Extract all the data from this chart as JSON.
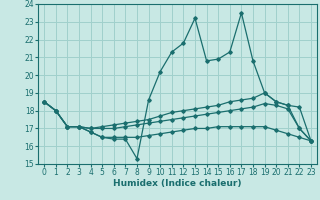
{
  "title": "",
  "xlabel": "Humidex (Indice chaleur)",
  "ylabel": "",
  "xlim": [
    -0.5,
    23.5
  ],
  "ylim": [
    15,
    24
  ],
  "yticks": [
    15,
    16,
    17,
    18,
    19,
    20,
    21,
    22,
    23,
    24
  ],
  "xticks": [
    0,
    1,
    2,
    3,
    4,
    5,
    6,
    7,
    8,
    9,
    10,
    11,
    12,
    13,
    14,
    15,
    16,
    17,
    18,
    19,
    20,
    21,
    22,
    23
  ],
  "bg_color": "#c8e8e4",
  "grid_color": "#a0d0cc",
  "line_color": "#1a6e6e",
  "lines": [
    {
      "x": [
        0,
        1,
        2,
        3,
        4,
        5,
        6,
        7,
        8,
        9,
        10,
        11,
        12,
        13,
        14,
        15,
        16,
        17,
        18,
        19,
        20,
        21,
        22,
        23
      ],
      "y": [
        18.5,
        18.0,
        17.1,
        17.1,
        16.8,
        16.5,
        16.4,
        16.4,
        15.3,
        18.6,
        20.2,
        21.3,
        21.8,
        23.2,
        20.8,
        20.9,
        21.3,
        23.5,
        20.8,
        19.0,
        18.5,
        18.3,
        17.0,
        16.3
      ]
    },
    {
      "x": [
        0,
        1,
        2,
        3,
        4,
        5,
        6,
        7,
        8,
        9,
        10,
        11,
        12,
        13,
        14,
        15,
        16,
        17,
        18,
        19,
        20,
        21,
        22,
        23
      ],
      "y": [
        18.5,
        18.0,
        17.1,
        17.1,
        17.0,
        17.1,
        17.2,
        17.3,
        17.4,
        17.5,
        17.7,
        17.9,
        18.0,
        18.1,
        18.2,
        18.3,
        18.5,
        18.6,
        18.7,
        19.0,
        18.5,
        18.3,
        18.2,
        16.3
      ]
    },
    {
      "x": [
        0,
        1,
        2,
        3,
        4,
        5,
        6,
        7,
        8,
        9,
        10,
        11,
        12,
        13,
        14,
        15,
        16,
        17,
        18,
        19,
        20,
        21,
        22,
        23
      ],
      "y": [
        18.5,
        18.0,
        17.1,
        17.1,
        17.0,
        17.0,
        17.0,
        17.1,
        17.2,
        17.3,
        17.4,
        17.5,
        17.6,
        17.7,
        17.8,
        17.9,
        18.0,
        18.1,
        18.2,
        18.4,
        18.3,
        18.1,
        17.0,
        16.3
      ]
    },
    {
      "x": [
        0,
        1,
        2,
        3,
        4,
        5,
        6,
        7,
        8,
        9,
        10,
        11,
        12,
        13,
        14,
        15,
        16,
        17,
        18,
        19,
        20,
        21,
        22,
        23
      ],
      "y": [
        18.5,
        18.0,
        17.1,
        17.1,
        16.8,
        16.5,
        16.5,
        16.5,
        16.5,
        16.6,
        16.7,
        16.8,
        16.9,
        17.0,
        17.0,
        17.1,
        17.1,
        17.1,
        17.1,
        17.1,
        16.9,
        16.7,
        16.5,
        16.3
      ]
    }
  ],
  "tick_fontsize": 5.5,
  "xlabel_fontsize": 6.5
}
